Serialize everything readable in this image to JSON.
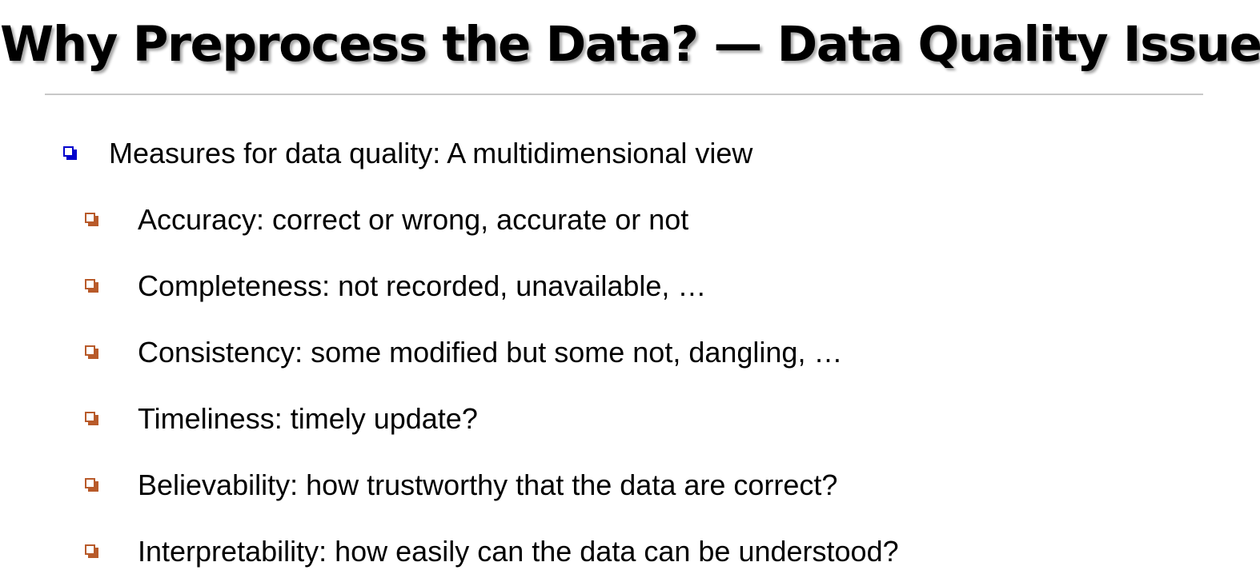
{
  "slide": {
    "title": "Why Preprocess the Data? — Data Quality Issues",
    "main_bullet": "Measures for data quality: A multidimensional view",
    "sub_bullets": [
      "Accuracy: correct or wrong, accurate or not",
      "Completeness: not recorded, unavailable, …",
      "Consistency: some modified but some not, dangling, …",
      "Timeliness: timely update?",
      "Believability: how trustworthy that the data are correct?",
      "Interpretability: how easily can the data can be understood?"
    ],
    "colors": {
      "main_bullet_marker": "#0000cc",
      "sub_bullet_marker": "#b85a2a",
      "divider": "#c8c8c8"
    },
    "icons": {
      "main_bullet_marker": "shadowed-square-bullet-icon",
      "sub_bullet_marker": "shadowed-square-bullet-icon"
    }
  }
}
